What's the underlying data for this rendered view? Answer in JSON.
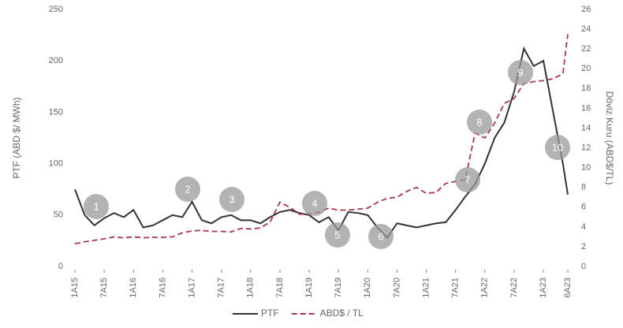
{
  "chart_data": {
    "type": "line",
    "ylabel": "PTF (ABD $/ MWh)",
    "y2label": "Döviz Kuru (ABD$/TL)",
    "x": [
      0,
      2,
      4,
      6,
      8,
      10,
      12,
      14,
      16,
      18,
      20,
      22,
      24,
      26,
      28,
      30,
      32,
      34,
      36,
      38,
      40,
      42,
      44,
      46,
      48,
      50,
      52,
      54,
      56,
      58,
      60,
      62,
      64,
      66,
      68,
      70,
      72,
      74,
      76,
      78,
      80,
      82,
      84,
      86,
      88,
      90,
      92,
      94,
      96,
      98,
      100,
      101
    ],
    "xlim": [
      0,
      101
    ],
    "xticks": [
      {
        "value": 0,
        "label": "1A15"
      },
      {
        "value": 6,
        "label": "7A15"
      },
      {
        "value": 12,
        "label": "1A16"
      },
      {
        "value": 18,
        "label": "7A16"
      },
      {
        "value": 24,
        "label": "1A17"
      },
      {
        "value": 30,
        "label": "7A17"
      },
      {
        "value": 36,
        "label": "1A18"
      },
      {
        "value": 42,
        "label": "7A18"
      },
      {
        "value": 48,
        "label": "1A19"
      },
      {
        "value": 54,
        "label": "7A19"
      },
      {
        "value": 60,
        "label": "1A20"
      },
      {
        "value": 66,
        "label": "7A20"
      },
      {
        "value": 72,
        "label": "1A21"
      },
      {
        "value": 78,
        "label": "7A21"
      },
      {
        "value": 84,
        "label": "1A22"
      },
      {
        "value": 90,
        "label": "7A22"
      },
      {
        "value": 96,
        "label": "1A23"
      },
      {
        "value": 101,
        "label": "6A23"
      }
    ],
    "ylim": [
      0,
      250
    ],
    "yticks": [
      0,
      50,
      100,
      150,
      200,
      250
    ],
    "y2lim": [
      0,
      26
    ],
    "y2ticks": [
      0,
      2,
      4,
      6,
      8,
      10,
      12,
      14,
      16,
      18,
      20,
      22,
      24,
      26
    ],
    "series": [
      {
        "name": "PTF",
        "color": "#333333",
        "dash": false,
        "values": [
          75,
          50,
          40,
          47,
          52,
          48,
          55,
          38,
          40,
          45,
          50,
          48,
          63,
          45,
          42,
          48,
          50,
          45,
          45,
          42,
          48,
          53,
          55,
          52,
          50,
          43,
          48,
          35,
          53,
          52,
          50,
          38,
          28,
          42,
          40,
          38,
          40,
          42,
          43,
          55,
          68,
          80,
          100,
          125,
          140,
          170,
          212,
          195,
          200,
          150,
          100,
          70
        ]
      },
      {
        "name": "ABD$ / TL",
        "color": "#a8394b",
        "dash": true,
        "axis": "y2",
        "values": [
          2.3,
          2.5,
          2.65,
          2.8,
          3.0,
          2.9,
          3.0,
          2.9,
          2.95,
          2.95,
          3.0,
          3.4,
          3.6,
          3.65,
          3.55,
          3.55,
          3.5,
          3.85,
          3.8,
          3.9,
          4.5,
          6.5,
          6.0,
          5.3,
          5.3,
          5.5,
          5.9,
          5.7,
          5.7,
          5.8,
          5.9,
          6.5,
          6.9,
          7.0,
          7.6,
          8.0,
          7.4,
          7.5,
          8.4,
          8.6,
          8.8,
          13.5,
          13.0,
          14.5,
          16.5,
          17.0,
          18.5,
          18.7,
          18.8,
          19.0,
          19.5,
          23.5
        ]
      }
    ],
    "annotations": [
      "1",
      "2",
      "3",
      "4",
      "5",
      "6",
      "7",
      "8",
      "9",
      "10"
    ]
  }
}
